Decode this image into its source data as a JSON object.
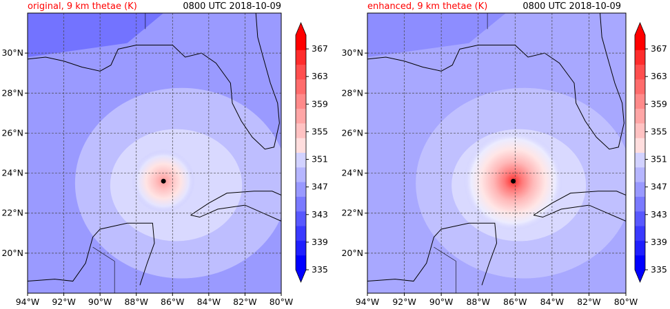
{
  "panels": [
    {
      "title_left": "original, 9 km thetae (K)",
      "title_right": "0800 UTC 2018-10-09"
    },
    {
      "title_left": "enhanced, 9 km thetae (K)",
      "title_right": "0800 UTC 2018-10-09"
    }
  ],
  "colors": {
    "title_left": "#ff0000",
    "title_right": "#000000",
    "center_marker": "#000000"
  },
  "chart_data": [
    {
      "type": "heatmap",
      "title": "original, 9 km thetae (K)",
      "subtitle": "0800 UTC 2018-10-09",
      "x_ticks": [
        "94°W",
        "92°W",
        "90°W",
        "88°W",
        "86°W",
        "84°W",
        "82°W",
        "80°W"
      ],
      "x_values": [
        -94,
        -92,
        -90,
        -88,
        -86,
        -84,
        -82,
        -80
      ],
      "y_ticks": [
        "20°N",
        "22°N",
        "24°N",
        "26°N",
        "28°N",
        "30°N"
      ],
      "y_values": [
        20,
        22,
        24,
        26,
        28,
        30
      ],
      "xlim": [
        -94,
        -80
      ],
      "ylim": [
        18,
        32
      ],
      "grid": true,
      "colorbar": {
        "ticks": [
          "335",
          "339",
          "343",
          "347",
          "351",
          "355",
          "359",
          "363",
          "367"
        ],
        "min": 335,
        "max": 369,
        "extend": "both"
      },
      "storm_center": {
        "lon": -86.5,
        "lat": 23.6
      },
      "peak_thetae": 359
    },
    {
      "type": "heatmap",
      "title": "enhanced, 9 km thetae (K)",
      "subtitle": "0800 UTC 2018-10-09",
      "x_ticks": [
        "94°W",
        "92°W",
        "90°W",
        "88°W",
        "86°W",
        "84°W",
        "82°W",
        "80°W"
      ],
      "x_values": [
        -94,
        -92,
        -90,
        -88,
        -86,
        -84,
        -82,
        -80
      ],
      "y_ticks": [
        "20°N",
        "22°N",
        "24°N",
        "26°N",
        "28°N",
        "30°N"
      ],
      "y_values": [
        20,
        22,
        24,
        26,
        28,
        30
      ],
      "xlim": [
        -94,
        -80
      ],
      "ylim": [
        18,
        32
      ],
      "grid": true,
      "colorbar": {
        "ticks": [
          "335",
          "339",
          "343",
          "347",
          "351",
          "355",
          "359",
          "363",
          "367"
        ],
        "min": 335,
        "max": 369,
        "extend": "both"
      },
      "storm_center": {
        "lon": -86.1,
        "lat": 23.6
      },
      "peak_thetae": 365
    }
  ]
}
